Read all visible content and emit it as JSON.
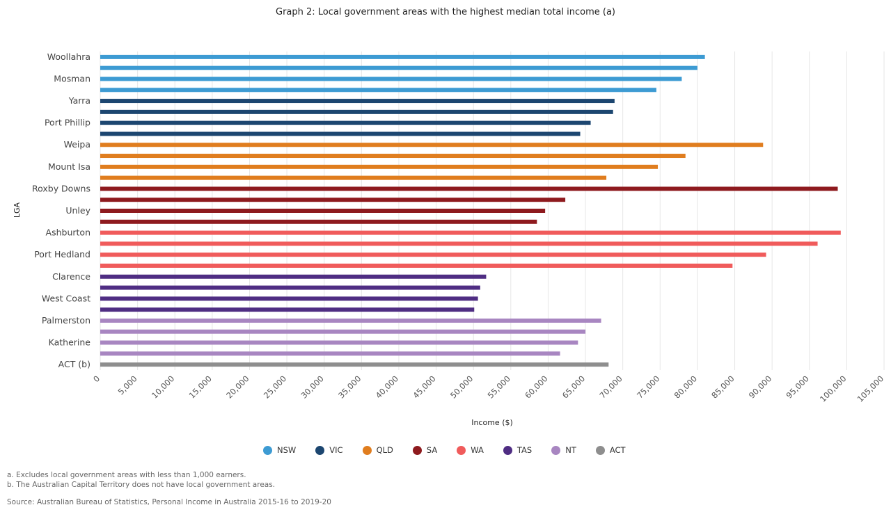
{
  "chart_data": {
    "type": "bar",
    "orientation": "horizontal",
    "title": "Graph 2: Local government areas with the highest median total income (a)",
    "xlabel": "Income ($)",
    "ylabel": "LGA",
    "xlim": [
      0,
      105000
    ],
    "xticks": [
      0,
      5000,
      10000,
      15000,
      20000,
      25000,
      30000,
      35000,
      40000,
      45000,
      50000,
      55000,
      60000,
      65000,
      70000,
      75000,
      80000,
      85000,
      90000,
      95000,
      100000,
      105000
    ],
    "xtick_labels": [
      "0",
      "5,000",
      "10,000",
      "15,000",
      "20,000",
      "25,000",
      "30,000",
      "35,000",
      "40,000",
      "45,000",
      "50,000",
      "55,000",
      "60,000",
      "65,000",
      "70,000",
      "75,000",
      "80,000",
      "85,000",
      "90,000",
      "95,000",
      "100,000",
      "105,000"
    ],
    "grid": "vertical",
    "legend_position": "bottom",
    "categories": [
      "Woollahra",
      "",
      "Mosman",
      "",
      "Yarra",
      "",
      "Port Phillip",
      "",
      "Weipa",
      "",
      "Mount Isa",
      "",
      "Roxby Downs",
      "",
      "Unley",
      "",
      "Ashburton",
      "",
      "Port Hedland",
      "",
      "Clarence",
      "",
      "West Coast",
      "",
      "Palmerston",
      "",
      "Katherine",
      "",
      "ACT (b)"
    ],
    "values": [
      81000,
      80000,
      77900,
      74500,
      68900,
      68700,
      65700,
      64300,
      88800,
      78400,
      74700,
      67800,
      98800,
      62300,
      59600,
      58500,
      99200,
      96100,
      89200,
      84700,
      51700,
      50900,
      50600,
      50100,
      67100,
      65000,
      64000,
      61600,
      68100
    ],
    "groups": [
      "NSW",
      "NSW",
      "NSW",
      "NSW",
      "VIC",
      "VIC",
      "VIC",
      "VIC",
      "QLD",
      "QLD",
      "QLD",
      "QLD",
      "SA",
      "SA",
      "SA",
      "SA",
      "WA",
      "WA",
      "WA",
      "WA",
      "TAS",
      "TAS",
      "TAS",
      "TAS",
      "NT",
      "NT",
      "NT",
      "NT",
      "ACT"
    ],
    "series": [
      {
        "name": "NSW",
        "color": "#3d9bd3"
      },
      {
        "name": "VIC",
        "color": "#1c4670"
      },
      {
        "name": "QLD",
        "color": "#e07d1e"
      },
      {
        "name": "SA",
        "color": "#8e1a1e"
      },
      {
        "name": "WA",
        "color": "#f05b5b"
      },
      {
        "name": "TAS",
        "color": "#4f2d83"
      },
      {
        "name": "NT",
        "color": "#a886c1"
      },
      {
        "name": "ACT",
        "color": "#8e8e8e"
      }
    ]
  },
  "footnotes": {
    "a": "a. Excludes local government areas with less than 1,000 earners.",
    "b": "b. The Australian Capital Territory does not have local government areas."
  },
  "source": "Source: Australian Bureau of Statistics, Personal Income in Australia 2015-16 to 2019-20"
}
